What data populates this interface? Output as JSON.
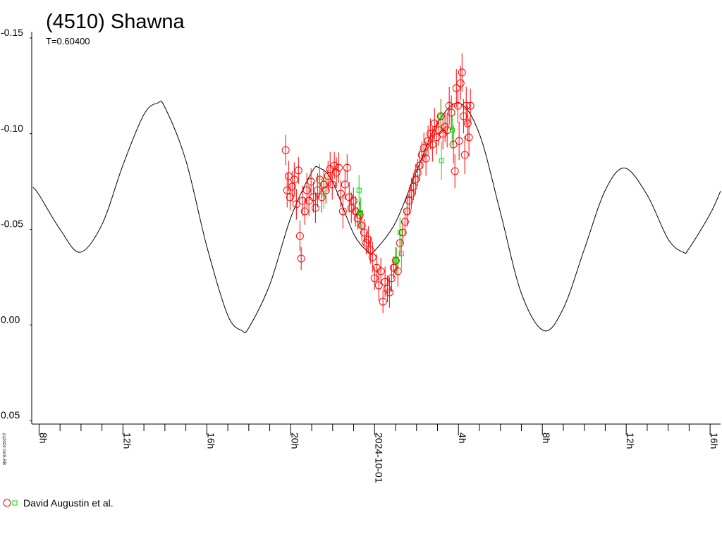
{
  "chart_data": {
    "type": "scatter",
    "title": "(4510) Shawna",
    "subtitle": "T=0.60400",
    "credit": "(c)2024 OAS-RB",
    "y_inverted": true,
    "ylim": [
      -0.15,
      0.05
    ],
    "yticks": [
      -0.15,
      {
        "value": -0.1,
        "label": "-0.10"
      },
      -0.05,
      {
        "value": 0,
        "label": "0.00"
      },
      0.05
    ],
    "xlim": [
      -16.35,
      16.5
    ],
    "xticks": [
      {
        "value": -16,
        "label": "8h"
      },
      {
        "value": -12,
        "label": "12h"
      },
      {
        "value": -8,
        "label": "16h"
      },
      {
        "value": -4,
        "label": "20h"
      },
      {
        "value": 0,
        "label": "2024-10-01"
      },
      {
        "value": 4,
        "label": "4h"
      },
      {
        "value": 8,
        "label": "8h"
      },
      {
        "value": 12,
        "label": "12h"
      },
      {
        "value": 16,
        "label": "16h"
      }
    ],
    "xticks_minor": [
      -15,
      -14,
      -13,
      -11,
      -10,
      -9,
      -7,
      -6,
      -5,
      -3,
      -2,
      -1,
      1,
      2,
      3,
      5,
      6,
      7,
      9,
      10,
      11,
      13,
      14,
      15
    ],
    "curve": {
      "color": "#000000",
      "x": [
        -16.3,
        -16,
        -15,
        -14.05,
        -13,
        -12,
        -11,
        -10.35,
        -10,
        -9,
        -8,
        -7,
        -6.32,
        -6,
        -5,
        -4,
        -3,
        -2.62,
        -2,
        -1,
        -0.27,
        0,
        1,
        2,
        3,
        4.03,
        5,
        6,
        7,
        8.07,
        9,
        10,
        11,
        11.93,
        13,
        14,
        14.72,
        15,
        16,
        16.5
      ],
      "values": [
        -0.072,
        -0.068,
        -0.05,
        -0.038,
        -0.0525,
        -0.0836,
        -0.11,
        -0.116,
        -0.1138,
        -0.086,
        -0.041,
        -0.005,
        0.003,
        0.0015,
        -0.021,
        -0.056,
        -0.0798,
        -0.082,
        -0.0749,
        -0.0477,
        -0.038,
        -0.0387,
        -0.0536,
        -0.0804,
        -0.1055,
        -0.116,
        -0.0998,
        -0.0588,
        -0.0165,
        0.003,
        -0.0086,
        -0.0395,
        -0.0704,
        -0.082,
        -0.0679,
        -0.0448,
        -0.038,
        -0.04,
        -0.058,
        -0.07
      ]
    },
    "series": [
      {
        "name": "David Augustin et al.",
        "color": "#ff0000",
        "marker": "circle",
        "x": [
          -4.24,
          -4.17,
          -4.1,
          -4.03,
          -3.93,
          -3.83,
          -3.73,
          -3.63,
          -3.56,
          -3.5,
          -3.43,
          -3.33,
          -3.23,
          -3.13,
          -3.03,
          -2.92,
          -2.82,
          -2.72,
          -2.62,
          -2.52,
          -2.42,
          -2.32,
          -2.22,
          -2.12,
          -2.02,
          -1.92,
          -1.82,
          -1.71,
          -1.61,
          -1.51,
          -1.41,
          -1.31,
          -1.21,
          -1.11,
          -1.01,
          -0.91,
          -0.81,
          -0.71,
          -0.61,
          -0.5,
          -0.4,
          -0.3,
          -0.2,
          -0.1,
          0,
          0.1,
          0.2,
          0.3,
          0.4,
          0.5,
          0.61,
          0.71,
          0.81,
          0.91,
          1.01,
          1.11,
          1.21,
          1.34,
          1.45,
          1.55,
          1.65,
          1.75,
          1.85,
          1.95,
          2.05,
          2.15,
          2.25,
          2.35,
          2.45,
          2.55,
          2.66,
          2.76,
          2.86,
          2.96,
          3.06,
          3.16,
          3.26,
          3.36,
          3.46,
          3.56,
          3.66,
          3.76,
          3.83,
          3.9,
          3.97,
          4.03,
          4.1,
          4.17,
          4.24,
          4.3,
          4.37,
          4.44,
          4.5,
          4.57
        ],
        "values": [
          -0.0914,
          -0.0704,
          -0.0778,
          -0.0668,
          -0.0723,
          -0.076,
          -0.0631,
          -0.0808,
          -0.0465,
          -0.0347,
          -0.0649,
          -0.0594,
          -0.0704,
          -0.0649,
          -0.0749,
          -0.0668,
          -0.0612,
          -0.0704,
          -0.076,
          -0.0668,
          -0.0734,
          -0.0704,
          -0.0778,
          -0.0815,
          -0.0734,
          -0.0833,
          -0.0796,
          -0.0822,
          -0.0686,
          -0.0594,
          -0.0734,
          -0.0822,
          -0.0668,
          -0.0612,
          -0.0649,
          -0.0594,
          -0.0557,
          -0.0575,
          -0.052,
          -0.0483,
          -0.0428,
          -0.0446,
          -0.0391,
          -0.0354,
          -0.0244,
          -0.0299,
          -0.0207,
          -0.0281,
          -0.0122,
          -0.0225,
          -0.0189,
          -0.017,
          -0.0244,
          -0.0299,
          -0.0336,
          -0.0281,
          -0.0428,
          -0.0483,
          -0.0539,
          -0.0594,
          -0.0649,
          -0.0686,
          -0.0723,
          -0.076,
          -0.0796,
          -0.0833,
          -0.0889,
          -0.0925,
          -0.087,
          -0.0962,
          -0.0999,
          -0.0944,
          -0.1054,
          -0.0981,
          -0.1018,
          -0.1091,
          -0.0999,
          -0.1036,
          -0.1018,
          -0.1146,
          -0.111,
          -0.0944,
          -0.0804,
          -0.1238,
          -0.1146,
          -0.0962,
          -0.1264,
          -0.132,
          -0.1091,
          -0.0889,
          -0.1146,
          -0.1054,
          -0.0981,
          -0.1146
        ],
        "errors": [
          0.008,
          0.009,
          0.008,
          0.007,
          0.008,
          0.009,
          0.008,
          0.007,
          0.008,
          0.006,
          0.008,
          0.007,
          0.009,
          0.008,
          0.007,
          0.008,
          0.008,
          0.009,
          0.007,
          0.008,
          0.008,
          0.007,
          0.008,
          0.009,
          0.008,
          0.007,
          0.008,
          0.008,
          0.007,
          0.009,
          0.008,
          0.007,
          0.008,
          0.008,
          0.007,
          0.008,
          0.006,
          0.007,
          0.008,
          0.007,
          0.006,
          0.007,
          0.007,
          0.008,
          0.006,
          0.007,
          0.008,
          0.007,
          0.006,
          0.008,
          0.007,
          0.008,
          0.007,
          0.006,
          0.007,
          0.008,
          0.007,
          0.006,
          0.007,
          0.008,
          0.007,
          0.008,
          0.007,
          0.008,
          0.007,
          0.008,
          0.007,
          0.008,
          0.009,
          0.008,
          0.008,
          0.009,
          0.008,
          0.009,
          0.008,
          0.009,
          0.008,
          0.008,
          0.009,
          0.01,
          0.009,
          0.01,
          0.009,
          0.01,
          0.009,
          0.01,
          0.009,
          0.01,
          0.009,
          0.01,
          0.01,
          0.009,
          0.01,
          0.009
        ]
      },
      {
        "color": "#00dd00",
        "marker": "square",
        "x": [
          -2.62,
          -2.42,
          -0.74,
          -0.67,
          1.04,
          1.21,
          1.28,
          3.16,
          3.19,
          3.7
        ],
        "values": [
          -0.0752,
          -0.0686,
          -0.0704,
          -0.0587,
          -0.0336,
          -0.0483,
          -0.0373,
          -0.1091,
          -0.0859,
          -0.1018
        ],
        "errors": [
          0.009,
          0.008,
          0.008,
          0.008,
          0.007,
          0.008,
          0.008,
          0.008,
          0.01,
          0.008
        ]
      }
    ]
  }
}
